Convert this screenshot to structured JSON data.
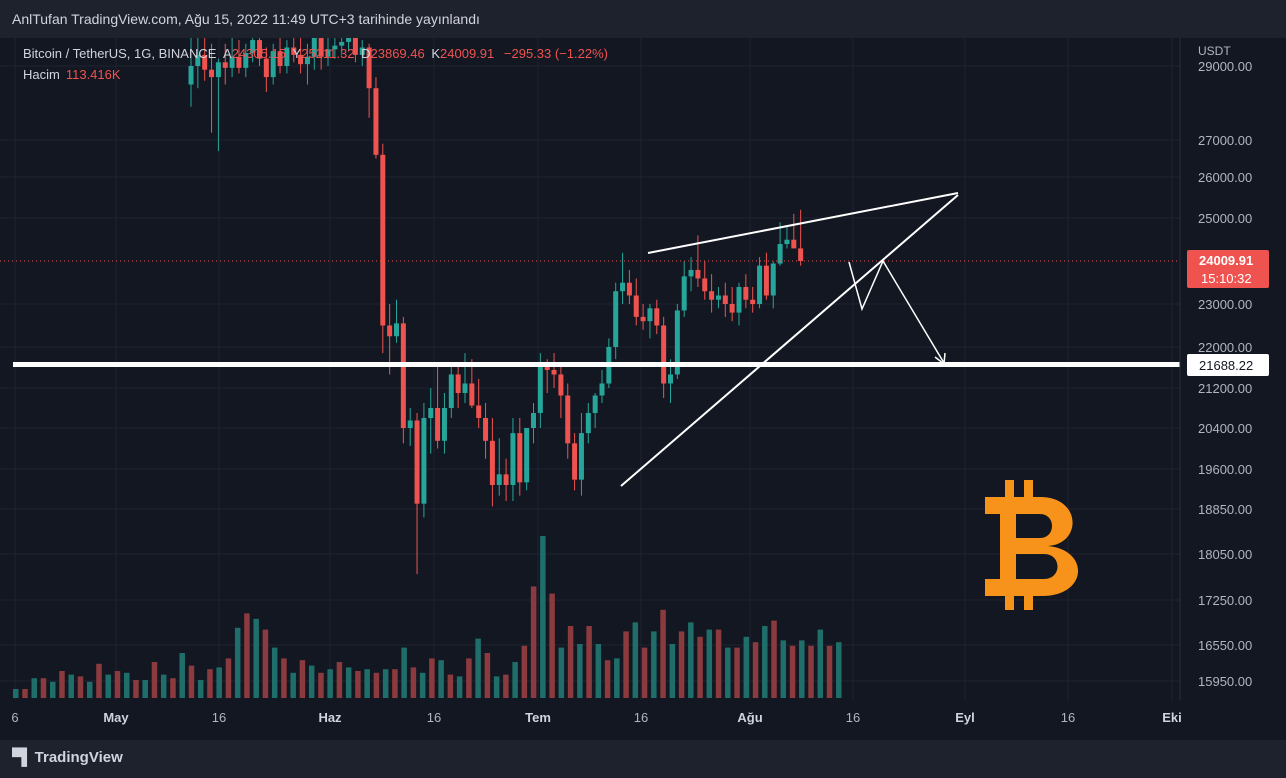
{
  "header": {
    "text": "AnlTufan TradingView.com, Ağu 15, 2022 11:49 UTC+3 tarihinde yayınlandı"
  },
  "legend": {
    "symbol": "Bitcoin / TetherUS, 1G, BINANCE",
    "open_key": "A",
    "open": "24305.15",
    "high_key": "Y",
    "high": "25211.32",
    "low_key": "D",
    "low": "23869.46",
    "close_key": "K",
    "close": "24009.91",
    "change": "−295.33 (−1.22%)",
    "volume_label": "Hacim",
    "volume_value": "113.416K"
  },
  "footer": {
    "logo_text": "TradingView"
  },
  "colors": {
    "up": "#26a69a",
    "down": "#ef5350",
    "vol_up": "#1f6e6a",
    "vol_down": "#8b3a3d",
    "background": "#131722",
    "bitcoin": "#f7931a"
  },
  "icons": {
    "bitcoin_logo": "bitcoin-icon"
  },
  "chart_data": {
    "type": "candlestick",
    "symbol": "BTCUSDT",
    "interval": "1D",
    "currency": "USDT",
    "y_ticks": [
      "29000.00",
      "27000.00",
      "26000.00",
      "25000.00",
      "23000.00",
      "22000.00",
      "21200.00",
      "20400.00",
      "19600.00",
      "18850.00",
      "18050.00",
      "17250.00",
      "16550.00",
      "15950.00"
    ],
    "x_ticks": [
      "6",
      "May",
      "16",
      "Haz",
      "16",
      "Tem",
      "16",
      "Ağu",
      "16",
      "Eyl",
      "16",
      "Eki"
    ],
    "last_price": {
      "value": 24009.91,
      "label": "24009.91",
      "countdown": "15:10:32"
    },
    "horizontal_level": {
      "value": 21688.22,
      "label": "21688.22"
    },
    "candles": [
      {
        "o": 28500,
        "h": 30100,
        "l": 27900,
        "c": 29000
      },
      {
        "o": 29000,
        "h": 30000,
        "l": 28400,
        "c": 29300
      },
      {
        "o": 29300,
        "h": 29800,
        "l": 28600,
        "c": 28900
      },
      {
        "o": 28900,
        "h": 29600,
        "l": 27200,
        "c": 28700
      },
      {
        "o": 28700,
        "h": 29200,
        "l": 26700,
        "c": 29100
      },
      {
        "o": 29100,
        "h": 29600,
        "l": 28500,
        "c": 28950
      },
      {
        "o": 28950,
        "h": 29900,
        "l": 28700,
        "c": 29250
      },
      {
        "o": 29250,
        "h": 29700,
        "l": 28800,
        "c": 28950
      },
      {
        "o": 28950,
        "h": 29600,
        "l": 28700,
        "c": 29350
      },
      {
        "o": 29350,
        "h": 30200,
        "l": 29100,
        "c": 29700
      },
      {
        "o": 29700,
        "h": 30100,
        "l": 29000,
        "c": 29200
      },
      {
        "o": 29200,
        "h": 29500,
        "l": 28300,
        "c": 28700
      },
      {
        "o": 28700,
        "h": 29600,
        "l": 28500,
        "c": 29400
      },
      {
        "o": 29400,
        "h": 29800,
        "l": 28800,
        "c": 29000
      },
      {
        "o": 29000,
        "h": 29700,
        "l": 28800,
        "c": 29500
      },
      {
        "o": 29500,
        "h": 30000,
        "l": 29100,
        "c": 29300
      },
      {
        "o": 29300,
        "h": 29800,
        "l": 28800,
        "c": 29050
      },
      {
        "o": 29050,
        "h": 29600,
        "l": 28500,
        "c": 29250
      },
      {
        "o": 29250,
        "h": 30100,
        "l": 28900,
        "c": 29850
      },
      {
        "o": 29850,
        "h": 30000,
        "l": 28900,
        "c": 29250
      },
      {
        "o": 29250,
        "h": 29800,
        "l": 29000,
        "c": 29450
      },
      {
        "o": 29450,
        "h": 30200,
        "l": 29200,
        "c": 29550
      },
      {
        "o": 29550,
        "h": 29900,
        "l": 29300,
        "c": 29650
      },
      {
        "o": 29650,
        "h": 30300,
        "l": 29400,
        "c": 29850
      },
      {
        "o": 29850,
        "h": 30100,
        "l": 29100,
        "c": 29300
      },
      {
        "o": 29300,
        "h": 29700,
        "l": 29000,
        "c": 29500
      },
      {
        "o": 29500,
        "h": 29600,
        "l": 27600,
        "c": 28400
      },
      {
        "o": 28400,
        "h": 28700,
        "l": 26500,
        "c": 26600
      },
      {
        "o": 26600,
        "h": 26900,
        "l": 21900,
        "c": 22500
      },
      {
        "o": 22500,
        "h": 23000,
        "l": 21500,
        "c": 22250
      },
      {
        "o": 22250,
        "h": 23100,
        "l": 22100,
        "c": 22550
      },
      {
        "o": 22550,
        "h": 22700,
        "l": 20100,
        "c": 20400
      },
      {
        "o": 20400,
        "h": 20800,
        "l": 20050,
        "c": 20550
      },
      {
        "o": 20550,
        "h": 20700,
        "l": 17700,
        "c": 18950
      },
      {
        "o": 18950,
        "h": 20900,
        "l": 18700,
        "c": 20600
      },
      {
        "o": 20600,
        "h": 21200,
        "l": 19900,
        "c": 20800
      },
      {
        "o": 20800,
        "h": 21700,
        "l": 20000,
        "c": 20150
      },
      {
        "o": 20150,
        "h": 21100,
        "l": 19900,
        "c": 20800
      },
      {
        "o": 20800,
        "h": 21700,
        "l": 20600,
        "c": 21500
      },
      {
        "o": 21500,
        "h": 21700,
        "l": 20800,
        "c": 21100
      },
      {
        "o": 21100,
        "h": 21900,
        "l": 20900,
        "c": 21300
      },
      {
        "o": 21300,
        "h": 21800,
        "l": 20800,
        "c": 20850
      },
      {
        "o": 20850,
        "h": 21400,
        "l": 20400,
        "c": 20600
      },
      {
        "o": 20600,
        "h": 20900,
        "l": 19800,
        "c": 20150
      },
      {
        "o": 20150,
        "h": 20600,
        "l": 18900,
        "c": 19300
      },
      {
        "o": 19300,
        "h": 20200,
        "l": 19100,
        "c": 19500
      },
      {
        "o": 19500,
        "h": 19800,
        "l": 19000,
        "c": 19300
      },
      {
        "o": 19300,
        "h": 20600,
        "l": 19000,
        "c": 20300
      },
      {
        "o": 20300,
        "h": 20600,
        "l": 19100,
        "c": 19350
      },
      {
        "o": 19350,
        "h": 20400,
        "l": 19200,
        "c": 20400
      },
      {
        "o": 20400,
        "h": 20900,
        "l": 20100,
        "c": 20700
      },
      {
        "o": 20700,
        "h": 21900,
        "l": 20400,
        "c": 21700
      },
      {
        "o": 21700,
        "h": 21800,
        "l": 21100,
        "c": 21600
      },
      {
        "o": 21600,
        "h": 21900,
        "l": 21200,
        "c": 21500
      },
      {
        "o": 21500,
        "h": 21700,
        "l": 20600,
        "c": 21050
      },
      {
        "o": 21050,
        "h": 21300,
        "l": 19800,
        "c": 20100
      },
      {
        "o": 20100,
        "h": 20300,
        "l": 19200,
        "c": 19400
      },
      {
        "o": 19400,
        "h": 20700,
        "l": 19100,
        "c": 20300
      },
      {
        "o": 20300,
        "h": 20900,
        "l": 20100,
        "c": 20700
      },
      {
        "o": 20700,
        "h": 21100,
        "l": 20400,
        "c": 21050
      },
      {
        "o": 21050,
        "h": 21600,
        "l": 20900,
        "c": 21300
      },
      {
        "o": 21300,
        "h": 22200,
        "l": 21200,
        "c": 22000
      },
      {
        "o": 22000,
        "h": 23500,
        "l": 21800,
        "c": 23300
      },
      {
        "o": 23300,
        "h": 24200,
        "l": 23000,
        "c": 23500
      },
      {
        "o": 23500,
        "h": 23800,
        "l": 23000,
        "c": 23200
      },
      {
        "o": 23200,
        "h": 23600,
        "l": 22500,
        "c": 22700
      },
      {
        "o": 22700,
        "h": 23000,
        "l": 22400,
        "c": 22600
      },
      {
        "o": 22600,
        "h": 23000,
        "l": 22200,
        "c": 22900
      },
      {
        "o": 22900,
        "h": 23100,
        "l": 22300,
        "c": 22500
      },
      {
        "o": 22500,
        "h": 22700,
        "l": 21000,
        "c": 21300
      },
      {
        "o": 21300,
        "h": 21800,
        "l": 20900,
        "c": 21500
      },
      {
        "o": 21500,
        "h": 23000,
        "l": 21400,
        "c": 22850
      },
      {
        "o": 22850,
        "h": 24000,
        "l": 22700,
        "c": 23650
      },
      {
        "o": 23650,
        "h": 24100,
        "l": 23300,
        "c": 23800
      },
      {
        "o": 23800,
        "h": 24600,
        "l": 23400,
        "c": 23600
      },
      {
        "o": 23600,
        "h": 24000,
        "l": 23100,
        "c": 23300
      },
      {
        "o": 23300,
        "h": 23700,
        "l": 22800,
        "c": 23100
      },
      {
        "o": 23100,
        "h": 23400,
        "l": 22900,
        "c": 23200
      },
      {
        "o": 23200,
        "h": 23500,
        "l": 22700,
        "c": 23000
      },
      {
        "o": 23000,
        "h": 23400,
        "l": 22600,
        "c": 22800
      },
      {
        "o": 22800,
        "h": 23500,
        "l": 22500,
        "c": 23400
      },
      {
        "o": 23400,
        "h": 23700,
        "l": 22900,
        "c": 23100
      },
      {
        "o": 23100,
        "h": 23400,
        "l": 22800,
        "c": 23000
      },
      {
        "o": 23000,
        "h": 24100,
        "l": 22900,
        "c": 23900
      },
      {
        "o": 23900,
        "h": 24200,
        "l": 23100,
        "c": 23200
      },
      {
        "o": 23200,
        "h": 24000,
        "l": 22900,
        "c": 23950
      },
      {
        "o": 23950,
        "h": 24900,
        "l": 23900,
        "c": 24400
      },
      {
        "o": 24400,
        "h": 24800,
        "l": 24300,
        "c": 24500
      },
      {
        "o": 24500,
        "h": 25100,
        "l": 24400,
        "c": 24300
      },
      {
        "o": 24300,
        "h": 25200,
        "l": 23900,
        "c": 24010
      }
    ],
    "volumes": [
      {
        "v": 5,
        "up": true
      },
      {
        "v": 5,
        "up": false
      },
      {
        "v": 11,
        "up": true
      },
      {
        "v": 11,
        "up": false
      },
      {
        "v": 9,
        "up": true
      },
      {
        "v": 15,
        "up": false
      },
      {
        "v": 13,
        "up": true
      },
      {
        "v": 12,
        "up": false
      },
      {
        "v": 9,
        "up": true
      },
      {
        "v": 19,
        "up": false
      },
      {
        "v": 13,
        "up": true
      },
      {
        "v": 15,
        "up": false
      },
      {
        "v": 14,
        "up": true
      },
      {
        "v": 10,
        "up": false
      },
      {
        "v": 10,
        "up": true
      },
      {
        "v": 20,
        "up": false
      },
      {
        "v": 13,
        "up": true
      },
      {
        "v": 11,
        "up": false
      },
      {
        "v": 25,
        "up": true
      },
      {
        "v": 18,
        "up": false
      },
      {
        "v": 10,
        "up": true
      },
      {
        "v": 16,
        "up": false
      },
      {
        "v": 17,
        "up": true
      },
      {
        "v": 22,
        "up": false
      },
      {
        "v": 39,
        "up": true
      },
      {
        "v": 47,
        "up": false
      },
      {
        "v": 44,
        "up": true
      },
      {
        "v": 38,
        "up": false
      },
      {
        "v": 28,
        "up": true
      },
      {
        "v": 22,
        "up": false
      },
      {
        "v": 14,
        "up": true
      },
      {
        "v": 21,
        "up": false
      },
      {
        "v": 18,
        "up": true
      },
      {
        "v": 14,
        "up": false
      },
      {
        "v": 16,
        "up": true
      },
      {
        "v": 20,
        "up": false
      },
      {
        "v": 17,
        "up": true
      },
      {
        "v": 15,
        "up": false
      },
      {
        "v": 16,
        "up": true
      },
      {
        "v": 14,
        "up": false
      },
      {
        "v": 16,
        "up": true
      },
      {
        "v": 16,
        "up": false
      },
      {
        "v": 28,
        "up": true
      },
      {
        "v": 17,
        "up": false
      },
      {
        "v": 14,
        "up": true
      },
      {
        "v": 22,
        "up": false
      },
      {
        "v": 21,
        "up": true
      },
      {
        "v": 13,
        "up": false
      },
      {
        "v": 12,
        "up": true
      },
      {
        "v": 22,
        "up": false
      },
      {
        "v": 33,
        "up": true
      },
      {
        "v": 25,
        "up": false
      },
      {
        "v": 12,
        "up": true
      },
      {
        "v": 13,
        "up": false
      },
      {
        "v": 20,
        "up": true
      },
      {
        "v": 29,
        "up": false
      },
      {
        "v": 62,
        "up": false
      },
      {
        "v": 90,
        "up": true
      },
      {
        "v": 58,
        "up": false
      },
      {
        "v": 28,
        "up": true
      },
      {
        "v": 40,
        "up": false
      },
      {
        "v": 30,
        "up": true
      },
      {
        "v": 40,
        "up": false
      },
      {
        "v": 30,
        "up": true
      },
      {
        "v": 21,
        "up": false
      },
      {
        "v": 22,
        "up": true
      },
      {
        "v": 37,
        "up": false
      },
      {
        "v": 42,
        "up": true
      },
      {
        "v": 28,
        "up": false
      },
      {
        "v": 37,
        "up": true
      },
      {
        "v": 49,
        "up": false
      },
      {
        "v": 30,
        "up": true
      },
      {
        "v": 37,
        "up": false
      },
      {
        "v": 42,
        "up": true
      },
      {
        "v": 34,
        "up": false
      },
      {
        "v": 38,
        "up": true
      },
      {
        "v": 38,
        "up": false
      },
      {
        "v": 28,
        "up": true
      },
      {
        "v": 28,
        "up": false
      },
      {
        "v": 34,
        "up": true
      },
      {
        "v": 31,
        "up": false
      },
      {
        "v": 40,
        "up": true
      },
      {
        "v": 43,
        "up": false
      },
      {
        "v": 32,
        "up": true
      },
      {
        "v": 29,
        "up": false
      },
      {
        "v": 32,
        "up": true
      },
      {
        "v": 29,
        "up": false
      },
      {
        "v": 38,
        "up": true
      },
      {
        "v": 29,
        "up": false
      },
      {
        "v": 31,
        "up": true
      }
    ]
  }
}
